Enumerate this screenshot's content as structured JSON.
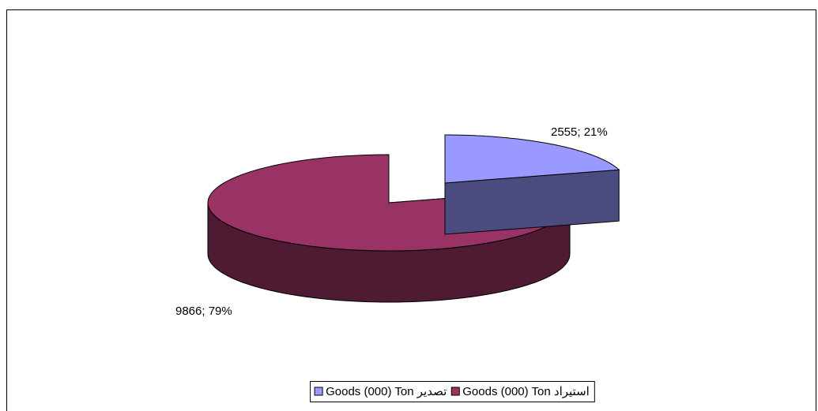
{
  "chart_data": {
    "type": "pie3d",
    "categories": [
      "Goods (000) Ton تصدير",
      "Goods (000) Ton استيراد"
    ],
    "values": [
      2555,
      9866
    ],
    "value_labels": [
      "2555; 21%",
      "9866; 79%"
    ],
    "colors": [
      "#9999ff",
      "#993366"
    ],
    "side_colors": [
      "#4b4b80",
      "#4f1b33"
    ],
    "legend": "bottom"
  }
}
